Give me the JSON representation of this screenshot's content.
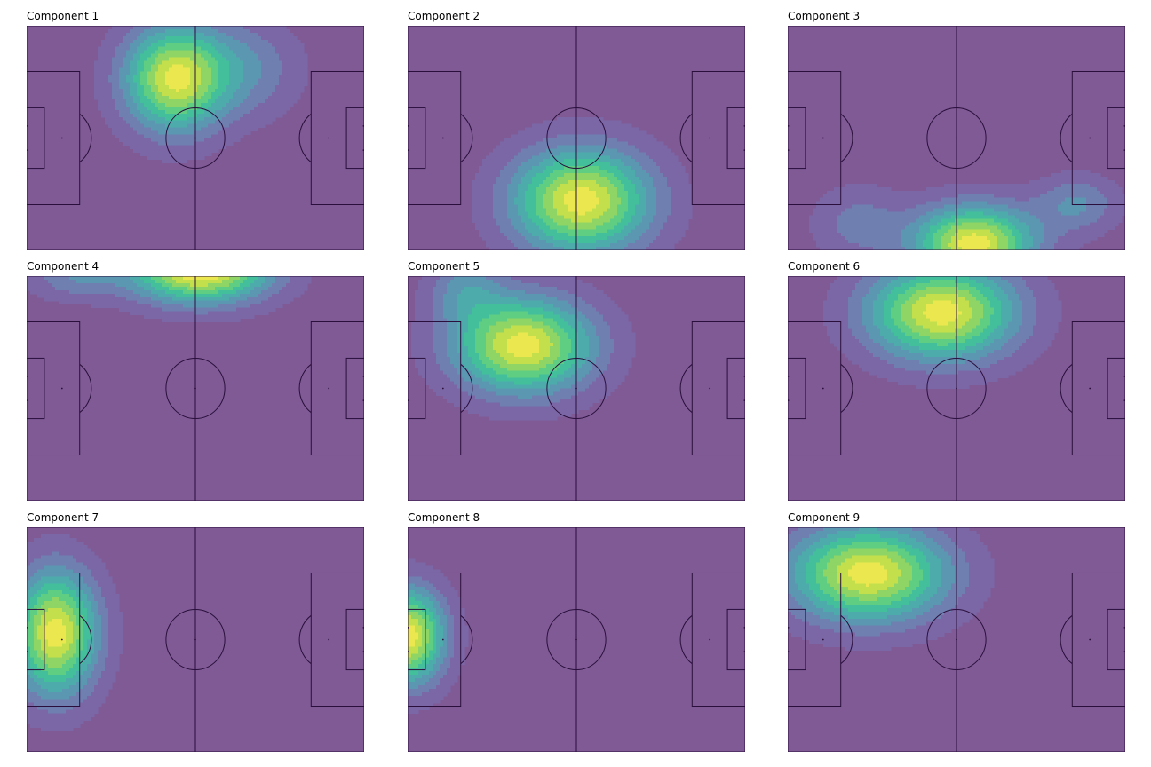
{
  "colors": {
    "pitch_background": "#7f5a95",
    "pitch_lines": "#2a0f3c",
    "viridis_levels": [
      "#7b67a6",
      "#6e7fb0",
      "#5c97b2",
      "#4dacab",
      "#43bf9c",
      "#5fcd82",
      "#8fd565",
      "#c4df4c",
      "#eae84e"
    ]
  },
  "chart_data": [
    {
      "type": "heatmap",
      "title": "Component 1",
      "pitch": "football",
      "xlim": [
        0,
        105
      ],
      "ylim": [
        0,
        68
      ],
      "grid": false,
      "peaks": [
        {
          "x": 46,
          "y": 52,
          "sx": 11,
          "sy": 11,
          "w": 1.0
        },
        {
          "x": 68,
          "y": 55,
          "sx": 12,
          "sy": 10,
          "w": 0.28
        }
      ]
    },
    {
      "type": "heatmap",
      "title": "Component 2",
      "pitch": "football",
      "xlim": [
        0,
        105
      ],
      "ylim": [
        0,
        68
      ],
      "grid": false,
      "peaks": [
        {
          "x": 54,
          "y": 15,
          "sx": 15,
          "sy": 11,
          "w": 1.0
        }
      ]
    },
    {
      "type": "heatmap",
      "title": "Component 3",
      "pitch": "football",
      "xlim": [
        0,
        105
      ],
      "ylim": [
        0,
        68
      ],
      "grid": false,
      "peaks": [
        {
          "x": 58,
          "y": 2,
          "sx": 13,
          "sy": 8,
          "w": 1.0
        },
        {
          "x": 90,
          "y": 14,
          "sx": 9,
          "sy": 6,
          "w": 0.3
        },
        {
          "x": 22,
          "y": 8,
          "sx": 10,
          "sy": 8,
          "w": 0.22
        }
      ]
    },
    {
      "type": "heatmap",
      "title": "Component 4",
      "pitch": "football",
      "xlim": [
        0,
        105
      ],
      "ylim": [
        0,
        68
      ],
      "grid": false,
      "peaks": [
        {
          "x": 54,
          "y": 70,
          "sx": 15,
          "sy": 7,
          "w": 1.0
        },
        {
          "x": 15,
          "y": 68,
          "sx": 10,
          "sy": 5,
          "w": 0.25
        }
      ]
    },
    {
      "type": "heatmap",
      "title": "Component 5",
      "pitch": "football",
      "xlim": [
        0,
        105
      ],
      "ylim": [
        0,
        68
      ],
      "grid": false,
      "peaks": [
        {
          "x": 36,
          "y": 47,
          "sx": 15,
          "sy": 10,
          "w": 1.0
        },
        {
          "x": 18,
          "y": 64,
          "sx": 8,
          "sy": 7,
          "w": 0.3
        }
      ]
    },
    {
      "type": "heatmap",
      "title": "Component 6",
      "pitch": "football",
      "xlim": [
        0,
        105
      ],
      "ylim": [
        0,
        68
      ],
      "grid": false,
      "peaks": [
        {
          "x": 48,
          "y": 57,
          "sx": 16,
          "sy": 10,
          "w": 1.0
        }
      ]
    },
    {
      "type": "heatmap",
      "title": "Component 7",
      "pitch": "football",
      "xlim": [
        0,
        105
      ],
      "ylim": [
        0,
        68
      ],
      "grid": false,
      "peaks": [
        {
          "x": 9,
          "y": 36,
          "sx": 9,
          "sy": 13,
          "w": 1.0
        }
      ]
    },
    {
      "type": "heatmap",
      "title": "Component 8",
      "pitch": "football",
      "xlim": [
        0,
        105
      ],
      "ylim": [
        0,
        68
      ],
      "grid": false,
      "peaks": [
        {
          "x": 0,
          "y": 35,
          "sx": 8,
          "sy": 10,
          "w": 1.0
        }
      ]
    },
    {
      "type": "heatmap",
      "title": "Component 9",
      "pitch": "football",
      "xlim": [
        0,
        105
      ],
      "ylim": [
        0,
        68
      ],
      "grid": false,
      "peaks": [
        {
          "x": 25,
          "y": 54,
          "sx": 17,
          "sy": 10,
          "w": 1.0
        }
      ]
    }
  ]
}
